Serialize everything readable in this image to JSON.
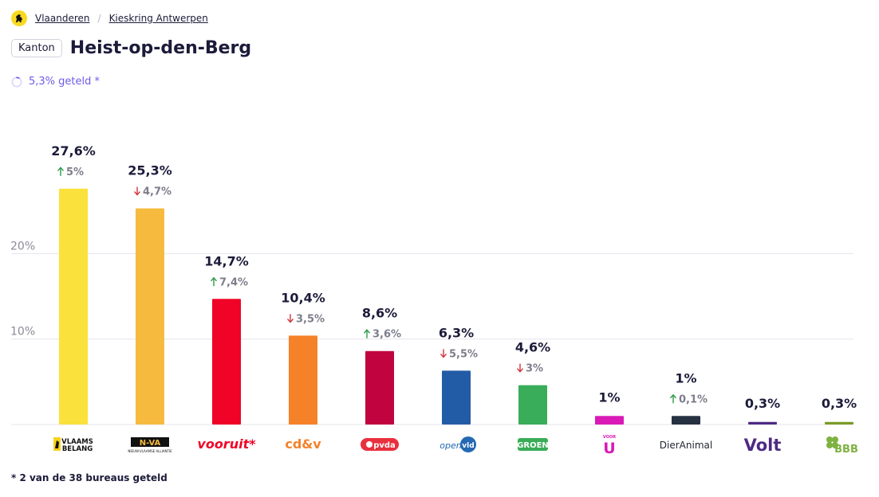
{
  "breadcrumb": {
    "region": "Vlaanderen",
    "district": "Kieskring Antwerpen"
  },
  "header": {
    "tag": "Kanton",
    "title": "Heist-op-den-Berg"
  },
  "progress": {
    "text": "5,3% geteld *",
    "fraction": 0.053
  },
  "footnote": "* 2 van de 38 bureaus geteld",
  "colors": {
    "accent": "#6d5ce7",
    "up": "#2e9a48",
    "down": "#d1323a",
    "grid": "#e6e6ee"
  },
  "chart_data": {
    "type": "bar",
    "ylim": [
      0,
      33
    ],
    "grid": true,
    "yticks": [
      {
        "value": 10,
        "label": "10%"
      },
      {
        "value": 20,
        "label": "20%"
      }
    ],
    "categories": [
      "Vlaams Belang",
      "N-VA",
      "Vooruit",
      "cd&v",
      "PVDA",
      "Open Vld",
      "Groen",
      "Voor U",
      "DierAnimal",
      "Volt",
      "BBB"
    ],
    "bars": [
      {
        "party": "Vlaams Belang",
        "value": 27.6,
        "label": "27,6%",
        "change": "5%",
        "direction": "up",
        "color": "#fbe13c",
        "logo": {
          "kind": "vb",
          "line1": "VLAAMS",
          "line2": "BELANG"
        }
      },
      {
        "party": "N-VA",
        "value": 25.3,
        "label": "25,3%",
        "change": "4,7%",
        "direction": "down",
        "color": "#f6bb3e",
        "logo": {
          "kind": "nva",
          "line1": "N-VA",
          "line2": "NIEUW-VLAAMSE ALLIANTIE"
        }
      },
      {
        "party": "Vooruit",
        "value": 14.7,
        "label": "14,7%",
        "change": "7,4%",
        "direction": "up",
        "color": "#ef0427",
        "logo": {
          "kind": "text",
          "line1": "vooruit*",
          "color": "#ef0427"
        }
      },
      {
        "party": "cd&v",
        "value": 10.4,
        "label": "10,4%",
        "change": "3,5%",
        "direction": "down",
        "color": "#f58129",
        "logo": {
          "kind": "text",
          "line1": "cd&v",
          "color": "#f58129"
        }
      },
      {
        "party": "PVDA",
        "value": 8.6,
        "label": "8,6%",
        "change": "3,6%",
        "direction": "up",
        "color": "#c1043f",
        "logo": {
          "kind": "pvda",
          "line1": "pvda",
          "color": "#e8303e"
        }
      },
      {
        "party": "Open Vld",
        "value": 6.3,
        "label": "6,3%",
        "change": "5,5%",
        "direction": "down",
        "color": "#235ca6",
        "logo": {
          "kind": "openvld",
          "line1": "open",
          "line2": "vld",
          "color": "#2469b1"
        }
      },
      {
        "party": "Groen",
        "value": 4.6,
        "label": "4,6%",
        "change": "3%",
        "direction": "down",
        "color": "#39ad59",
        "logo": {
          "kind": "groen",
          "line1": "GROEN",
          "color": "#3aac58"
        }
      },
      {
        "party": "Voor U",
        "value": 1.0,
        "label": "1%",
        "change": "",
        "direction": "",
        "color": "#d91ab6",
        "logo": {
          "kind": "vooru",
          "line1": "VOOR",
          "line2": "U",
          "color": "#d91ab6"
        }
      },
      {
        "party": "DierAnimal",
        "value": 1.0,
        "label": "1%",
        "change": "0,1%",
        "direction": "up",
        "color": "#263142",
        "logo": {
          "kind": "text",
          "line1": "DierAnimal",
          "color": "#222631"
        }
      },
      {
        "party": "Volt",
        "value": 0.3,
        "label": "0,3%",
        "change": "",
        "direction": "",
        "color": "#4e2a83",
        "logo": {
          "kind": "text",
          "line1": "Volt",
          "color": "#4e2a83"
        }
      },
      {
        "party": "BBB",
        "value": 0.3,
        "label": "0,3%",
        "change": "",
        "direction": "",
        "color": "#7a9b27",
        "logo": {
          "kind": "bbb",
          "line1": "BBB",
          "color": "#7fb240"
        }
      }
    ]
  }
}
